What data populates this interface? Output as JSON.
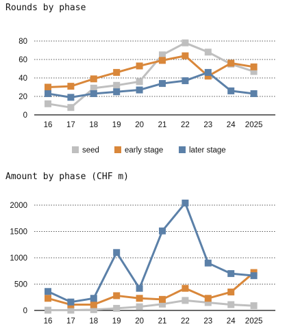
{
  "colors": {
    "seed": "#bfbfbf",
    "early": "#d9873a",
    "later": "#5b80a8"
  },
  "chart_data": [
    {
      "type": "line",
      "title": "Rounds by phase",
      "categories": [
        "16",
        "17",
        "18",
        "19",
        "20",
        "21",
        "22",
        "23",
        "24",
        "2025"
      ],
      "ylim": [
        0,
        80
      ],
      "yticks": [
        "0",
        "20",
        "40",
        "60",
        "80"
      ],
      "grid": true,
      "legend_position": "bottom",
      "series": [
        {
          "name": "seed",
          "color": "#bfbfbf",
          "values": [
            12,
            8,
            29,
            32,
            36,
            65,
            78,
            68,
            55,
            47
          ]
        },
        {
          "name": "early stage",
          "color": "#d9873a",
          "values": [
            30,
            31,
            39,
            46,
            53,
            59,
            64,
            42,
            56,
            52
          ]
        },
        {
          "name": "later stage",
          "color": "#5b80a8",
          "values": [
            23,
            19,
            23,
            25,
            27,
            34,
            37,
            46,
            26,
            23
          ]
        }
      ]
    },
    {
      "type": "line",
      "title": "Amount by phase (CHF m)",
      "categories": [
        "16",
        "17",
        "18",
        "19",
        "20",
        "21",
        "22",
        "23",
        "24",
        "2025"
      ],
      "ylim": [
        0,
        2000
      ],
      "yticks": [
        "0",
        "500",
        "1000",
        "1500",
        "2000"
      ],
      "grid": true,
      "series": [
        {
          "name": "seed",
          "color": "#bfbfbf",
          "values": [
            5,
            5,
            15,
            40,
            70,
            120,
            190,
            150,
            110,
            90
          ]
        },
        {
          "name": "early stage",
          "color": "#d9873a",
          "values": [
            230,
            110,
            110,
            280,
            230,
            210,
            420,
            230,
            350,
            720
          ]
        },
        {
          "name": "later stage",
          "color": "#5b80a8",
          "values": [
            360,
            160,
            230,
            1100,
            420,
            1510,
            2040,
            900,
            700,
            660
          ]
        }
      ]
    }
  ]
}
